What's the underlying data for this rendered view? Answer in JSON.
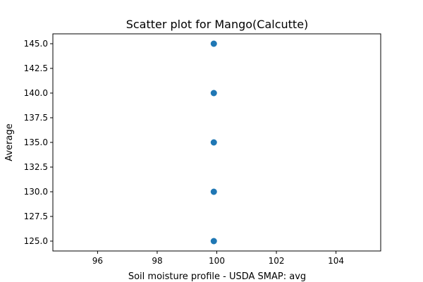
{
  "chart_data": {
    "type": "scatter",
    "title": "Scatter plot for Mango(Calcutte)",
    "xlabel": "Soil moisture profile - USDA SMAP: avg",
    "ylabel": "Average",
    "xlim": [
      94.5,
      105.5
    ],
    "ylim": [
      124.0,
      146.0
    ],
    "x_ticks": [
      96,
      98,
      100,
      102,
      104
    ],
    "x_tick_labels": [
      "96",
      "98",
      "100",
      "102",
      "104"
    ],
    "y_ticks": [
      125.0,
      127.5,
      130.0,
      132.5,
      135.0,
      137.5,
      140.0,
      142.5,
      145.0
    ],
    "y_tick_labels": [
      "125.0",
      "127.5",
      "130.0",
      "132.5",
      "135.0",
      "137.5",
      "140.0",
      "142.5",
      "145.0"
    ],
    "grid": false,
    "legend": "none",
    "colors": {
      "marker": "#1f77b4",
      "axes": "#000000"
    },
    "points": [
      {
        "x": 99.9,
        "y": 145.0
      },
      {
        "x": 99.9,
        "y": 140.0
      },
      {
        "x": 99.9,
        "y": 135.0
      },
      {
        "x": 99.9,
        "y": 130.0
      },
      {
        "x": 99.9,
        "y": 125.0
      }
    ]
  }
}
